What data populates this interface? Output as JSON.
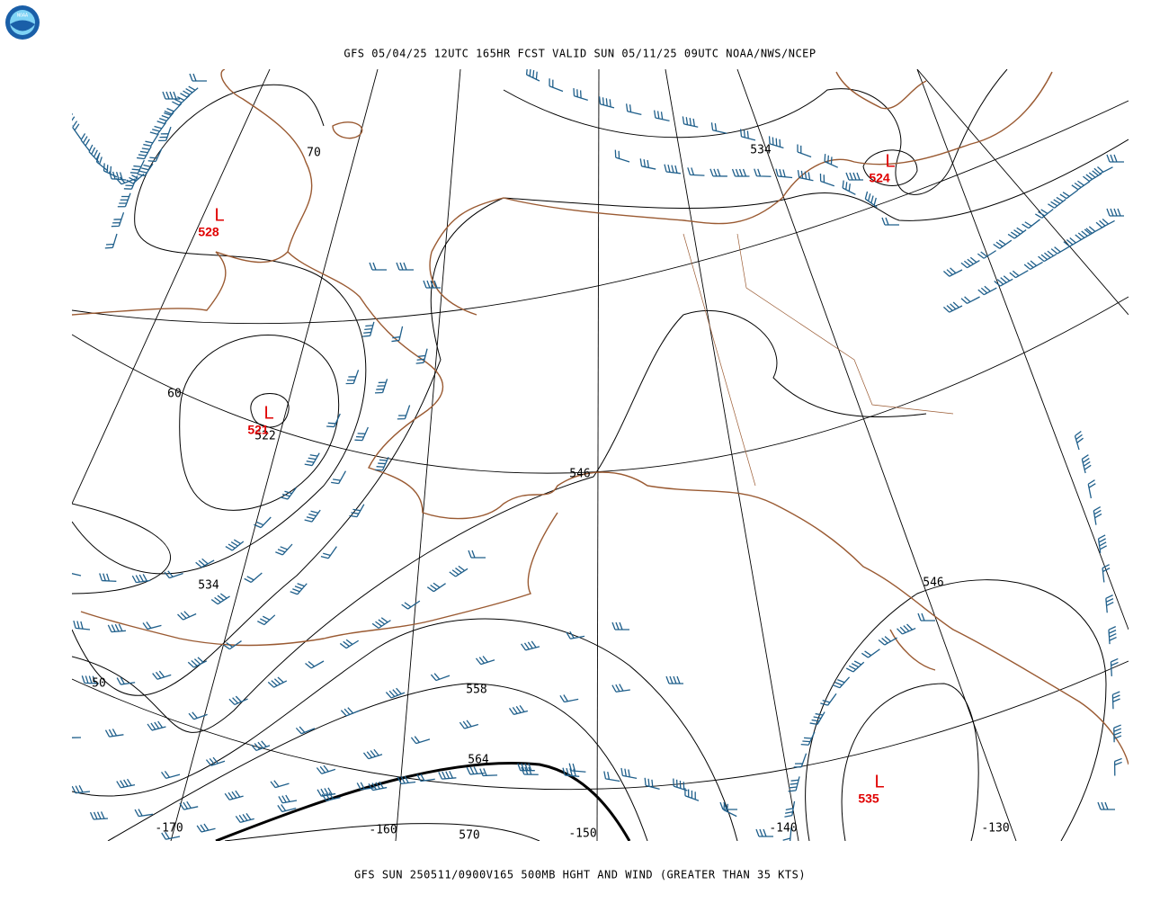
{
  "header": {
    "title": "GFS 05/04/25 12UTC 165HR FCST VALID SUN 05/11/25 09UTC NOAA/NWS/NCEP"
  },
  "footer": {
    "caption": "GFS SUN 250511/0900V165 500MB HGHT AND WIND (GREATER THAN 35 KTS)"
  },
  "logo": {
    "label": "NOAA"
  },
  "latitude_labels": [
    "70",
    "60",
    "50"
  ],
  "longitude_labels": [
    "-170",
    "-160",
    "-150",
    "-140",
    "-130"
  ],
  "contour_labels": [
    "534",
    "546",
    "534",
    "522",
    "558",
    "564",
    "570",
    "546"
  ],
  "lows": [
    {
      "symbol": "L",
      "value": "528"
    },
    {
      "symbol": "L",
      "value": "521"
    },
    {
      "symbol": "L",
      "value": "524"
    },
    {
      "symbol": "L",
      "value": "535"
    }
  ]
}
